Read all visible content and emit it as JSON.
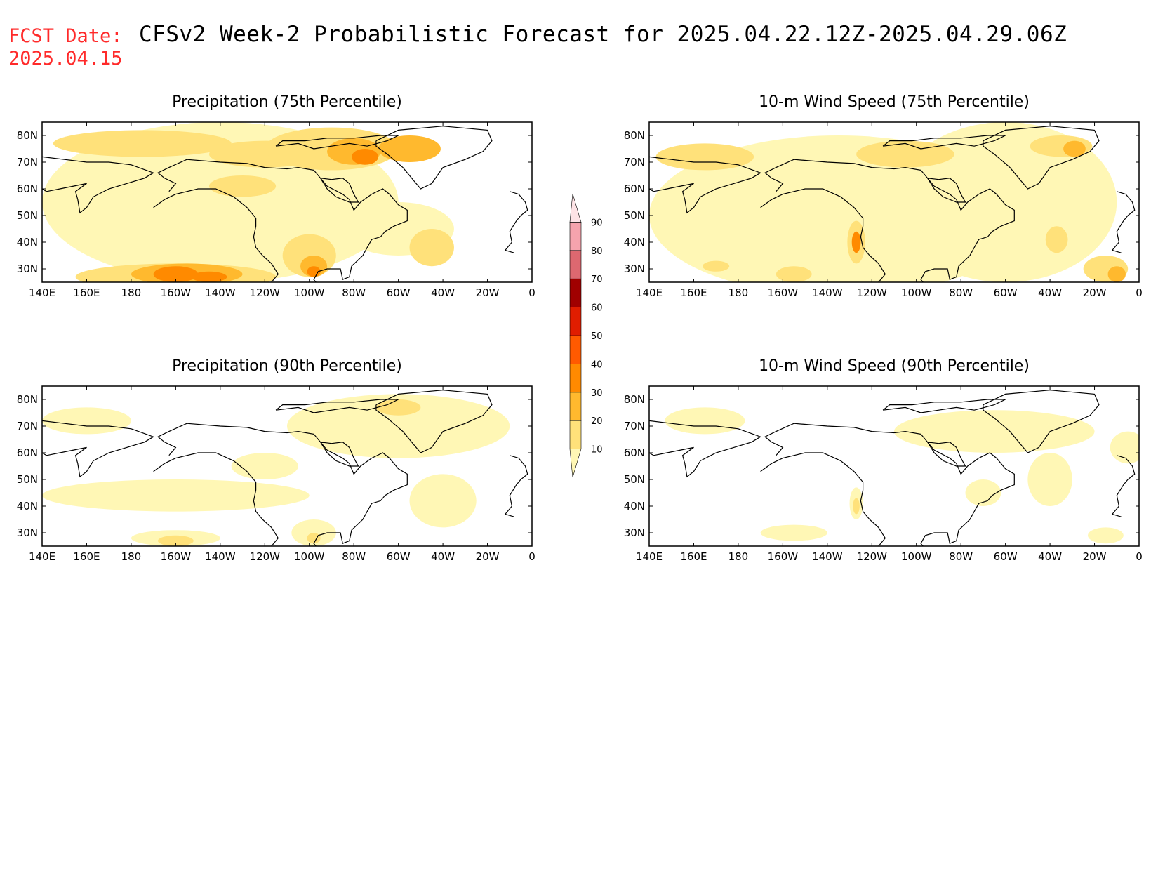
{
  "forecast_date": {
    "label": "FCST Date:",
    "value": "2025.04.15"
  },
  "title": "CFSv2 Week-2 Probabilistic Forecast for 2025.04.22.12Z-2025.04.29.06Z",
  "colors": {
    "levels": [
      "#fff7b5",
      "#ffe17a",
      "#ffb92e",
      "#ff8a00",
      "#ff5a00",
      "#e01d00",
      "#a00000",
      "#dd6870",
      "#f5a3ad",
      "#fde3e6"
    ],
    "coast": "#000000",
    "frame": "#000000"
  },
  "colorbar": {
    "ticks": [
      "10",
      "20",
      "30",
      "40",
      "50",
      "60",
      "70",
      "80",
      "90"
    ]
  },
  "panels": [
    {
      "id": "precip75",
      "title": "Precipitation (75th Percentile)",
      "lon_labels": [
        "140E",
        "160E",
        "180",
        "160W",
        "140W",
        "120W",
        "100W",
        "80W",
        "60W",
        "40W",
        "20W",
        "0"
      ],
      "lat_labels": [
        "30N",
        "40N",
        "50N",
        "60N",
        "70N",
        "80N"
      ]
    },
    {
      "id": "wind75",
      "title": "10-m Wind Speed (75th Percentile)",
      "lon_labels": [
        "140E",
        "160E",
        "180",
        "160W",
        "140W",
        "120W",
        "100W",
        "80W",
        "60W",
        "40W",
        "20W",
        "0"
      ],
      "lat_labels": [
        "30N",
        "40N",
        "50N",
        "60N",
        "70N",
        "80N"
      ]
    },
    {
      "id": "precip90",
      "title": "Precipitation (90th Percentile)",
      "lon_labels": [
        "140E",
        "160E",
        "180",
        "160W",
        "140W",
        "120W",
        "100W",
        "80W",
        "60W",
        "40W",
        "20W",
        "0"
      ],
      "lat_labels": [
        "30N",
        "40N",
        "50N",
        "60N",
        "70N",
        "80N"
      ]
    },
    {
      "id": "wind90",
      "title": "10-m Wind Speed (90th Percentile)",
      "lon_labels": [
        "140E",
        "160E",
        "180",
        "160W",
        "140W",
        "120W",
        "100W",
        "80W",
        "60W",
        "40W",
        "20W",
        "0"
      ],
      "lat_labels": [
        "30N",
        "40N",
        "50N",
        "60N",
        "70N",
        "80N"
      ]
    }
  ],
  "map_extent": {
    "lon_range": [
      140,
      360
    ],
    "lat_range": [
      25,
      85
    ]
  },
  "blobs": {
    "precip75": [
      [
        220,
        55,
        80,
        30,
        1
      ],
      [
        270,
        62,
        20,
        10,
        1
      ],
      [
        300,
        45,
        25,
        10,
        1
      ],
      [
        185,
        77,
        40,
        5,
        2
      ],
      [
        240,
        73,
        25,
        5,
        2
      ],
      [
        270,
        75,
        30,
        8,
        2
      ],
      [
        305,
        75,
        14,
        5,
        3
      ],
      [
        280,
        74,
        12,
        5,
        3
      ],
      [
        200,
        27,
        45,
        5,
        2
      ],
      [
        205,
        28,
        25,
        4,
        3
      ],
      [
        200,
        28,
        10,
        3,
        4
      ],
      [
        215,
        27,
        8,
        2,
        4
      ],
      [
        260,
        35,
        12,
        8,
        2
      ],
      [
        262,
        31,
        6,
        4,
        3
      ],
      [
        262,
        29,
        3,
        2,
        4
      ],
      [
        315,
        38,
        10,
        7,
        2
      ],
      [
        230,
        61,
        15,
        4,
        2
      ],
      [
        285,
        72,
        6,
        3,
        4
      ]
    ],
    "wind75": [
      [
        225,
        50,
        85,
        30,
        1
      ],
      [
        300,
        55,
        50,
        30,
        1
      ],
      [
        165,
        72,
        22,
        5,
        2
      ],
      [
        255,
        73,
        22,
        5,
        2
      ],
      [
        325,
        76,
        14,
        4,
        2
      ],
      [
        331,
        75,
        5,
        3,
        3
      ],
      [
        233,
        40,
        4,
        8,
        2
      ],
      [
        233,
        40,
        2,
        4,
        4
      ],
      [
        345,
        30,
        10,
        5,
        2
      ],
      [
        350,
        28,
        4,
        3,
        3
      ],
      [
        205,
        28,
        8,
        3,
        2
      ],
      [
        170,
        31,
        6,
        2,
        2
      ],
      [
        323,
        41,
        5,
        5,
        2
      ]
    ],
    "precip90": [
      [
        200,
        44,
        60,
        6,
        1
      ],
      [
        300,
        70,
        50,
        12,
        1
      ],
      [
        320,
        42,
        15,
        10,
        1
      ],
      [
        160,
        72,
        20,
        5,
        1
      ],
      [
        300,
        77,
        10,
        3,
        2
      ],
      [
        200,
        28,
        20,
        3,
        1
      ],
      [
        200,
        27,
        8,
        2,
        2
      ],
      [
        262,
        30,
        10,
        5,
        1
      ],
      [
        262,
        28,
        3,
        2,
        2
      ],
      [
        240,
        55,
        15,
        5,
        1
      ]
    ],
    "wind90": [
      [
        295,
        68,
        45,
        8,
        1
      ],
      [
        165,
        72,
        18,
        5,
        1
      ],
      [
        320,
        50,
        10,
        10,
        1
      ],
      [
        233,
        41,
        3,
        6,
        1
      ],
      [
        233,
        40,
        1.5,
        3,
        2
      ],
      [
        205,
        30,
        15,
        3,
        1
      ],
      [
        345,
        29,
        8,
        3,
        1
      ],
      [
        290,
        45,
        8,
        5,
        1
      ],
      [
        355,
        62,
        8,
        6,
        1
      ]
    ]
  },
  "coastlines": {
    "north_america": [
      [
        197,
        59
      ],
      [
        200,
        62
      ],
      [
        195,
        64
      ],
      [
        192,
        66
      ],
      [
        197,
        68
      ],
      [
        205,
        71
      ],
      [
        220,
        70
      ],
      [
        232,
        69.5
      ],
      [
        240,
        68
      ],
      [
        250,
        67.5
      ],
      [
        255,
        68
      ],
      [
        262,
        67
      ],
      [
        265,
        64
      ],
      [
        268,
        61
      ],
      [
        275,
        58
      ],
      [
        278,
        56
      ],
      [
        280,
        52
      ],
      [
        283,
        55
      ],
      [
        288,
        58
      ],
      [
        293,
        60
      ],
      [
        296,
        58
      ],
      [
        300,
        54
      ],
      [
        304,
        52
      ],
      [
        304,
        48
      ],
      [
        298,
        46
      ],
      [
        294,
        44
      ],
      [
        292,
        42
      ],
      [
        288,
        41
      ],
      [
        286,
        38
      ],
      [
        284,
        35
      ],
      [
        279,
        31
      ],
      [
        278,
        27
      ],
      [
        275,
        26
      ],
      [
        274,
        30
      ],
      [
        268,
        30
      ],
      [
        264,
        29
      ],
      [
        262,
        26
      ],
      [
        263,
        25
      ]
    ],
    "pacific_coast": [
      [
        243,
        25
      ],
      [
        246,
        28
      ],
      [
        243,
        32
      ],
      [
        239,
        35
      ],
      [
        236,
        38
      ],
      [
        235,
        42
      ],
      [
        236,
        46
      ],
      [
        236,
        49
      ],
      [
        232,
        53
      ],
      [
        226,
        57
      ],
      [
        218,
        60
      ],
      [
        210,
        60
      ],
      [
        205,
        59
      ],
      [
        200,
        58
      ],
      [
        195,
        56
      ],
      [
        190,
        53
      ]
    ],
    "greenland": [
      [
        290,
        78
      ],
      [
        300,
        82
      ],
      [
        320,
        83.5
      ],
      [
        340,
        82
      ],
      [
        342,
        78
      ],
      [
        338,
        74
      ],
      [
        330,
        71
      ],
      [
        320,
        68
      ],
      [
        315,
        62
      ],
      [
        310,
        60
      ],
      [
        307,
        63
      ],
      [
        302,
        68
      ],
      [
        295,
        73
      ],
      [
        290,
        76
      ],
      [
        290,
        78
      ]
    ],
    "arctic_islands": [
      [
        245,
        76
      ],
      [
        255,
        77
      ],
      [
        262,
        75
      ],
      [
        270,
        76
      ],
      [
        278,
        77
      ],
      [
        286,
        76
      ],
      [
        295,
        78
      ],
      [
        300,
        80
      ],
      [
        292,
        80
      ],
      [
        280,
        79
      ],
      [
        268,
        79
      ],
      [
        258,
        78
      ],
      [
        248,
        78
      ],
      [
        245,
        76
      ]
    ],
    "siberia": [
      [
        140,
        72
      ],
      [
        150,
        71
      ],
      [
        160,
        70
      ],
      [
        170,
        70
      ],
      [
        180,
        69
      ],
      [
        190,
        66
      ],
      [
        186,
        64
      ],
      [
        178,
        62
      ],
      [
        170,
        60
      ],
      [
        163,
        57
      ],
      [
        160,
        53
      ],
      [
        157,
        51
      ],
      [
        156,
        56
      ],
      [
        155,
        59
      ],
      [
        160,
        62
      ],
      [
        148,
        60
      ],
      [
        142,
        59
      ],
      [
        140,
        60
      ]
    ],
    "europe": [
      [
        350,
        59
      ],
      [
        354,
        58
      ],
      [
        357,
        55
      ],
      [
        358,
        52
      ],
      [
        355,
        50
      ],
      [
        353,
        48
      ],
      [
        350,
        44
      ],
      [
        351,
        40
      ],
      [
        348,
        37
      ],
      [
        352,
        36
      ]
    ],
    "hudson": [
      [
        265,
        64
      ],
      [
        268,
        60
      ],
      [
        272,
        57
      ],
      [
        278,
        55
      ],
      [
        282,
        55
      ],
      [
        280,
        58
      ],
      [
        278,
        62
      ],
      [
        275,
        64
      ],
      [
        270,
        63.5
      ],
      [
        265,
        64
      ]
    ]
  }
}
